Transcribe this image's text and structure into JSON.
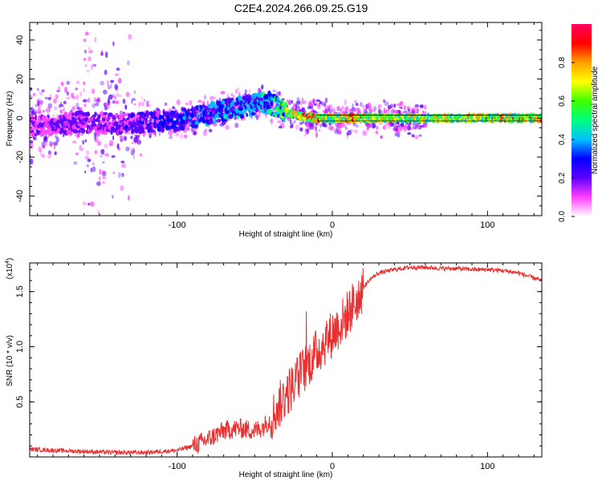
{
  "title": "C2E4.2024.266.09.25.G19",
  "chart_data": [
    {
      "type": "heatmap",
      "xlabel": "Height of straight line (km)",
      "ylabel": "Frequency (Hz)",
      "xlim": [
        -195,
        135
      ],
      "ylim": [
        -50,
        49
      ],
      "xticks": [
        -100,
        0,
        100
      ],
      "xtick_labels": [
        "-100",
        "0",
        "100"
      ],
      "yticks": [
        -40,
        -20,
        0,
        20,
        40
      ],
      "ytick_labels": [
        "-40",
        "-20",
        "0",
        "20",
        "40"
      ],
      "colorbar": {
        "label": "Normalized spectral amplitude",
        "range": [
          0,
          1
        ],
        "ticks": [
          0,
          0.2,
          0.4,
          0.6,
          0.8
        ],
        "tick_labels": [
          "0.0",
          "0.2",
          "0.4",
          "0.6",
          "0.8"
        ],
        "colors": [
          "#ffffff",
          "#ff40ff",
          "#6000ff",
          "#0000ff",
          "#00c0ff",
          "#00ff80",
          "#40ff00",
          "#ffff00",
          "#ffa000",
          "#ff0000",
          "#ff0060"
        ]
      },
      "ridge": {
        "height": [
          -195,
          -180,
          -160,
          -140,
          -120,
          -100,
          -80,
          -65,
          -50,
          -40,
          -35,
          -30,
          -25,
          -20,
          -15,
          -10,
          0,
          20,
          50,
          80,
          100,
          135
        ],
        "frequency": [
          -4,
          -3,
          -2,
          -3,
          -2,
          -1,
          2,
          5,
          7,
          8,
          5,
          3,
          2,
          1,
          0.5,
          0,
          0,
          0,
          0,
          0,
          0,
          0
        ],
        "amplitude": [
          0.2,
          0.25,
          0.25,
          0.25,
          0.3,
          0.35,
          0.4,
          0.45,
          0.45,
          0.5,
          0.6,
          0.65,
          0.8,
          0.85,
          0.85,
          0.85,
          0.8,
          0.8,
          0.75,
          0.78,
          0.82,
          0.85
        ]
      }
    },
    {
      "type": "line",
      "xlabel": "Height of straight line (km)",
      "ylabel": "SNR (10 * v/v)",
      "y_multiplier": "(x10",
      "y_multiplier_exp": "4",
      "y_multiplier_close": ")",
      "xlim": [
        -195,
        135
      ],
      "ylim": [
        0,
        1.76
      ],
      "xticks": [
        -100,
        0,
        100
      ],
      "xtick_labels": [
        "-100",
        "0",
        "100"
      ],
      "yticks": [
        0.5,
        1.0,
        1.5
      ],
      "ytick_labels": [
        "0.5",
        "1.0",
        "1.5"
      ],
      "series": [
        {
          "name": "SNR",
          "color": "#e83030",
          "x": [
            -195,
            -180,
            -160,
            -140,
            -120,
            -100,
            -90,
            -80,
            -70,
            -60,
            -50,
            -45,
            -40,
            -35,
            -30,
            -25,
            -20,
            -15,
            -10,
            -5,
            0,
            5,
            10,
            15,
            20,
            25,
            30,
            40,
            50,
            60,
            70,
            80,
            90,
            100,
            110,
            120,
            135
          ],
          "y": [
            0.07,
            0.06,
            0.05,
            0.04,
            0.04,
            0.06,
            0.1,
            0.16,
            0.24,
            0.26,
            0.24,
            0.27,
            0.34,
            0.45,
            0.56,
            0.66,
            0.76,
            0.86,
            0.95,
            1.04,
            1.12,
            1.2,
            1.3,
            1.42,
            1.54,
            1.62,
            1.67,
            1.7,
            1.72,
            1.72,
            1.71,
            1.71,
            1.7,
            1.7,
            1.69,
            1.67,
            1.6
          ]
        }
      ]
    }
  ]
}
